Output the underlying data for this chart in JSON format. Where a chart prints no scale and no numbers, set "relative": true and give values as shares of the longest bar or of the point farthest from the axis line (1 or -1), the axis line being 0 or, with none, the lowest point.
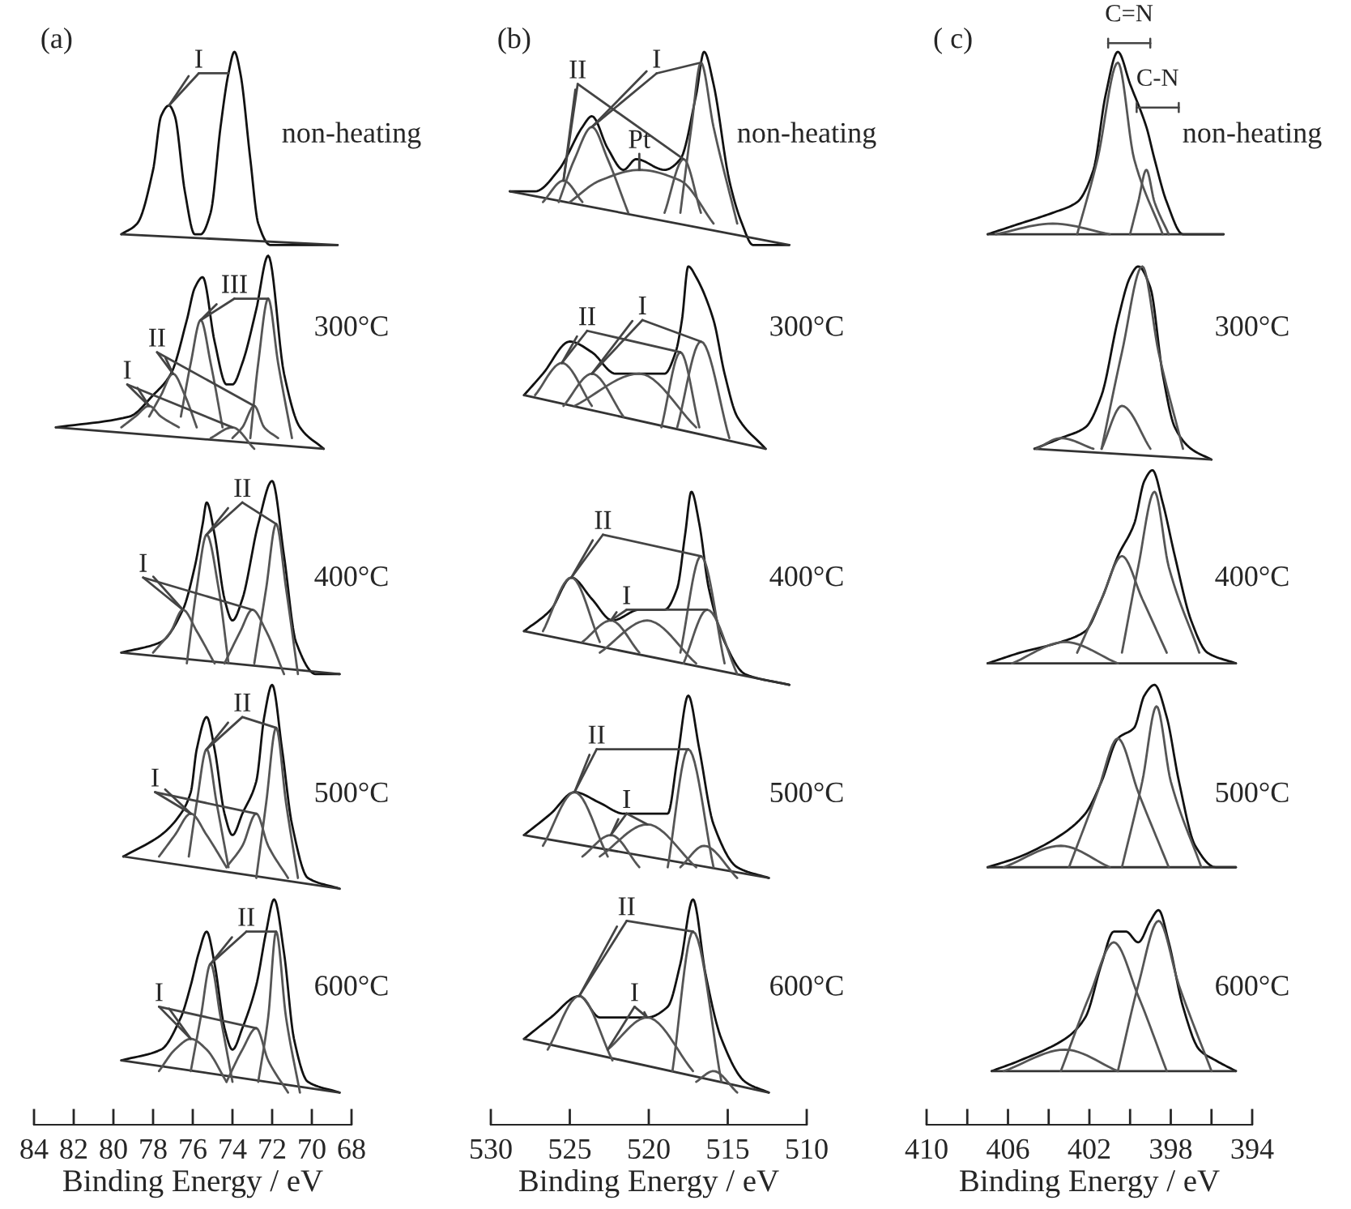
{
  "chart_data": [
    {
      "type": "line",
      "title": "(a)",
      "xlabel": "Binding Energy / eV",
      "xlim": [
        84,
        68
      ],
      "xticks": [
        84,
        82,
        80,
        78,
        76,
        74,
        72,
        70,
        68
      ],
      "tick_labels": "x",
      "relative": true,
      "series": [
        {
          "color": "#111111",
          "x": [
            79.6,
            78.8,
            78.0,
            77.6,
            77.2,
            76.9,
            76.4,
            75.9,
            75.6,
            75.1,
            74.6,
            74.2,
            73.9,
            73.6,
            73.1,
            72.7,
            72.1,
            68.7
          ],
          "values": [
            0.83,
            0.84,
            0.89,
            0.94,
            0.95,
            0.94,
            0.87,
            0.83,
            0.83,
            0.85,
            0.93,
            0.98,
            1.0,
            0.98,
            0.9,
            0.84,
            0.82,
            0.82
          ]
        },
        {
          "color": "#333333",
          "x": [
            79.6,
            68.7
          ],
          "values": [
            0.83,
            0.82
          ]
        },
        {
          "color": "#111111",
          "x": [
            82.9,
            79.2,
            78.0,
            77.1,
            76.3,
            75.9,
            75.5,
            74.9,
            74.3,
            74.0,
            73.5,
            72.8,
            72.2,
            71.4,
            70.6,
            69.4
          ],
          "values": [
            0.65,
            0.66,
            0.68,
            0.7,
            0.75,
            0.78,
            0.79,
            0.73,
            0.69,
            0.69,
            0.71,
            0.76,
            0.81,
            0.7,
            0.65,
            0.63
          ]
        },
        {
          "color": "#333333",
          "x": [
            82.9,
            69.4
          ],
          "values": [
            0.65,
            0.63
          ]
        },
        {
          "color": "#555555",
          "x": [
            76.6,
            76.1,
            75.6,
            75.1,
            74.5
          ],
          "values": [
            0.66,
            0.71,
            0.75,
            0.71,
            0.65
          ]
        },
        {
          "color": "#555555",
          "x": [
            73.1,
            72.7,
            72.2,
            71.7,
            71.0
          ],
          "values": [
            0.64,
            0.71,
            0.77,
            0.71,
            0.64
          ]
        },
        {
          "color": "#555555",
          "x": [
            78.2,
            77.6,
            77.0,
            76.4,
            75.8
          ],
          "values": [
            0.66,
            0.68,
            0.7,
            0.68,
            0.65
          ]
        },
        {
          "color": "#555555",
          "x": [
            74.0,
            73.5,
            72.9,
            72.4,
            71.7
          ],
          "values": [
            0.64,
            0.65,
            0.67,
            0.65,
            0.64
          ]
        },
        {
          "color": "#555555",
          "x": [
            79.6,
            78.9,
            78.2,
            77.6,
            76.7
          ],
          "values": [
            0.65,
            0.66,
            0.67,
            0.66,
            0.65
          ]
        },
        {
          "color": "#555555",
          "x": [
            75.1,
            74.0,
            72.9
          ],
          "values": [
            0.64,
            0.65,
            0.63
          ]
        },
        {
          "color": "#111111",
          "x": [
            79.6,
            77.6,
            76.5,
            75.9,
            75.5,
            75.3,
            74.9,
            74.4,
            74.0,
            73.5,
            72.7,
            72.0,
            71.4,
            70.8,
            69.8,
            68.6
          ],
          "values": [
            0.44,
            0.45,
            0.48,
            0.52,
            0.56,
            0.58,
            0.55,
            0.49,
            0.47,
            0.49,
            0.56,
            0.6,
            0.53,
            0.45,
            0.42,
            0.42
          ]
        },
        {
          "color": "#333333",
          "x": [
            79.6,
            68.6
          ],
          "values": [
            0.44,
            0.42
          ]
        },
        {
          "color": "#555555",
          "x": [
            76.3,
            75.8,
            75.3,
            74.7,
            74.2
          ],
          "values": [
            0.43,
            0.5,
            0.55,
            0.5,
            0.43
          ]
        },
        {
          "color": "#555555",
          "x": [
            72.9,
            72.3,
            71.8,
            71.3,
            70.7
          ],
          "values": [
            0.43,
            0.5,
            0.56,
            0.5,
            0.42
          ]
        },
        {
          "color": "#555555",
          "x": [
            78.0,
            77.1,
            76.5,
            75.8,
            74.9
          ],
          "values": [
            0.44,
            0.46,
            0.48,
            0.46,
            0.43
          ]
        },
        {
          "color": "#555555",
          "x": [
            74.4,
            73.6,
            73.0,
            72.3,
            71.4
          ],
          "values": [
            0.43,
            0.46,
            0.48,
            0.46,
            0.42
          ]
        },
        {
          "color": "#111111",
          "x": [
            79.5,
            77.6,
            76.6,
            76.1,
            75.8,
            75.3,
            74.9,
            74.4,
            74.0,
            73.5,
            72.8,
            72.4,
            72.0,
            71.5,
            71.0,
            70.2,
            68.6
          ],
          "values": [
            0.25,
            0.27,
            0.29,
            0.31,
            0.35,
            0.38,
            0.35,
            0.29,
            0.27,
            0.29,
            0.32,
            0.38,
            0.41,
            0.35,
            0.28,
            0.23,
            0.22
          ]
        },
        {
          "color": "#333333",
          "x": [
            79.5,
            68.6
          ],
          "values": [
            0.25,
            0.22
          ]
        },
        {
          "color": "#555555",
          "x": [
            76.2,
            75.8,
            75.3,
            74.8,
            74.2
          ],
          "values": [
            0.25,
            0.3,
            0.35,
            0.3,
            0.24
          ]
        },
        {
          "color": "#555555",
          "x": [
            72.8,
            72.3,
            71.8,
            71.3,
            70.7
          ],
          "values": [
            0.23,
            0.3,
            0.37,
            0.3,
            0.23
          ]
        },
        {
          "color": "#555555",
          "x": [
            77.7,
            76.9,
            76.1,
            75.3,
            74.3
          ],
          "values": [
            0.25,
            0.27,
            0.29,
            0.27,
            0.24
          ]
        },
        {
          "color": "#555555",
          "x": [
            74.3,
            73.5,
            72.8,
            72.2,
            71.2
          ],
          "values": [
            0.24,
            0.26,
            0.29,
            0.26,
            0.23
          ]
        },
        {
          "color": "#111111",
          "x": [
            79.6,
            77.6,
            76.6,
            76.1,
            75.7,
            75.3,
            74.9,
            74.4,
            74.0,
            73.5,
            72.8,
            72.3,
            71.9,
            71.4,
            70.9,
            70.2,
            68.6
          ],
          "values": [
            0.06,
            0.07,
            0.1,
            0.13,
            0.16,
            0.18,
            0.15,
            0.09,
            0.07,
            0.09,
            0.13,
            0.18,
            0.21,
            0.16,
            0.08,
            0.04,
            0.03
          ]
        },
        {
          "color": "#333333",
          "x": [
            79.6,
            68.6
          ],
          "values": [
            0.06,
            0.03
          ]
        },
        {
          "color": "#555555",
          "x": [
            76.1,
            75.6,
            75.1,
            74.6,
            74.0
          ],
          "values": [
            0.05,
            0.1,
            0.15,
            0.1,
            0.04
          ]
        },
        {
          "color": "#555555",
          "x": [
            72.7,
            72.2,
            71.8,
            71.3,
            70.6
          ],
          "values": [
            0.04,
            0.1,
            0.18,
            0.1,
            0.03
          ]
        },
        {
          "color": "#555555",
          "x": [
            77.7,
            76.9,
            76.1,
            75.3,
            74.3
          ],
          "values": [
            0.05,
            0.07,
            0.08,
            0.07,
            0.04
          ]
        },
        {
          "color": "#555555",
          "x": [
            74.3,
            73.5,
            72.8,
            72.2,
            71.2
          ],
          "values": [
            0.04,
            0.07,
            0.09,
            0.06,
            0.03
          ]
        },
        {
          "color": "#444444",
          "x": [
            75.7,
            77.2
          ],
          "values": [
            0.98,
            0.95
          ]
        },
        {
          "color": "#444444",
          "x": [
            75.7,
            74.2
          ],
          "values": [
            0.98,
            0.98
          ]
        },
        {
          "color": "#444444",
          "x": [
            73.9,
            75.6
          ],
          "values": [
            0.77,
            0.75
          ]
        },
        {
          "color": "#444444",
          "x": [
            73.9,
            72.2
          ],
          "values": [
            0.77,
            0.77
          ]
        },
        {
          "color": "#444444",
          "x": [
            77.8,
            77.0
          ],
          "values": [
            0.72,
            0.7
          ]
        },
        {
          "color": "#444444",
          "x": [
            77.8,
            72.9
          ],
          "values": [
            0.72,
            0.67
          ]
        },
        {
          "color": "#444444",
          "x": [
            79.3,
            78.2
          ],
          "values": [
            0.69,
            0.67
          ]
        },
        {
          "color": "#444444",
          "x": [
            79.3,
            74.0
          ],
          "values": [
            0.69,
            0.65
          ]
        },
        {
          "color": "#444444",
          "x": [
            73.5,
            75.3
          ],
          "values": [
            0.58,
            0.55
          ]
        },
        {
          "color": "#444444",
          "x": [
            73.5,
            71.8
          ],
          "values": [
            0.58,
            0.56
          ]
        },
        {
          "color": "#444444",
          "x": [
            78.5,
            76.5
          ],
          "values": [
            0.51,
            0.48
          ]
        },
        {
          "color": "#444444",
          "x": [
            78.5,
            73.0
          ],
          "values": [
            0.51,
            0.48
          ]
        },
        {
          "color": "#444444",
          "x": [
            73.5,
            75.3
          ],
          "values": [
            0.38,
            0.35
          ]
        },
        {
          "color": "#444444",
          "x": [
            73.5,
            71.8
          ],
          "values": [
            0.38,
            0.37
          ]
        },
        {
          "color": "#444444",
          "x": [
            77.9,
            76.1
          ],
          "values": [
            0.31,
            0.29
          ]
        },
        {
          "color": "#444444",
          "x": [
            77.9,
            72.8
          ],
          "values": [
            0.31,
            0.29
          ]
        },
        {
          "color": "#444444",
          "x": [
            73.3,
            75.1
          ],
          "values": [
            0.18,
            0.15
          ]
        },
        {
          "color": "#444444",
          "x": [
            73.3,
            71.8
          ],
          "values": [
            0.18,
            0.18
          ]
        },
        {
          "color": "#444444",
          "x": [
            77.7,
            76.1
          ],
          "values": [
            0.11,
            0.08
          ]
        },
        {
          "color": "#444444",
          "x": [
            77.7,
            72.8
          ],
          "values": [
            0.11,
            0.09
          ]
        }
      ],
      "annotations": [
        {
          "text": "I",
          "x": 77.2,
          "y": 0.95
        },
        {
          "text": "III",
          "x": 75.6,
          "y": 0.75
        },
        {
          "text": "II",
          "x": 77.0,
          "y": 0.7
        },
        {
          "text": "I",
          "x": 78.2,
          "y": 0.67
        },
        {
          "text": "II",
          "x": 75.3,
          "y": 0.55
        },
        {
          "text": "I",
          "x": 76.5,
          "y": 0.48
        },
        {
          "text": "II",
          "x": 75.3,
          "y": 0.35
        },
        {
          "text": "I",
          "x": 76.1,
          "y": 0.29
        },
        {
          "text": "II",
          "x": 75.1,
          "y": 0.15
        },
        {
          "text": "I",
          "x": 76.1,
          "y": 0.08
        },
        "non-heating",
        "300°C",
        "400°C",
        "500°C",
        "600°C"
      ]
    },
    {
      "type": "line",
      "title": "(b)",
      "xlabel": "Binding Energy / eV",
      "xlim": [
        530,
        510
      ],
      "xticks": [
        530,
        525,
        520,
        515,
        510
      ],
      "tick_labels": "x",
      "relative": true,
      "series": [
        {
          "color": "#111111",
          "x": [
            528.8,
            527.2,
            525.7,
            524.2,
            523.6,
            522.6,
            521.6,
            520.8,
            519.0,
            518.0,
            517.0,
            516.5,
            515.9,
            514.9,
            514.1,
            513.4,
            511.1
          ],
          "values": [
            0.87,
            0.87,
            0.89,
            0.93,
            0.94,
            0.91,
            0.89,
            0.9,
            0.89,
            0.9,
            0.96,
            1.0,
            0.97,
            0.88,
            0.84,
            0.82,
            0.82
          ]
        },
        {
          "color": "#333333",
          "x": [
            528.8,
            511.1
          ],
          "values": [
            0.87,
            0.82
          ]
        },
        {
          "color": "#555555",
          "x": [
            526.7,
            525.4,
            524.2
          ],
          "values": [
            0.86,
            0.88,
            0.86
          ]
        },
        {
          "color": "#555555",
          "x": [
            525.7,
            524.7,
            523.6,
            522.6,
            521.3
          ],
          "values": [
            0.86,
            0.9,
            0.93,
            0.9,
            0.85
          ]
        },
        {
          "color": "#555555",
          "x": [
            525.0,
            523.1,
            520.6,
            518.0,
            515.9
          ],
          "values": [
            0.86,
            0.88,
            0.89,
            0.88,
            0.84
          ]
        },
        {
          "color": "#555555",
          "x": [
            519.0,
            517.8,
            516.7
          ],
          "values": [
            0.85,
            0.9,
            0.85
          ]
        },
        {
          "color": "#555555",
          "x": [
            518.0,
            517.3,
            516.7,
            515.9,
            514.4
          ],
          "values": [
            0.85,
            0.93,
            0.99,
            0.93,
            0.84
          ]
        },
        {
          "color": "#111111",
          "x": [
            527.9,
            526.7,
            525.0,
            523.6,
            522.1,
            520.6,
            519.0,
            518.3,
            517.9,
            517.5,
            517.0,
            515.9,
            515.2,
            514.4,
            512.6
          ],
          "values": [
            0.68,
            0.7,
            0.73,
            0.72,
            0.7,
            0.7,
            0.7,
            0.72,
            0.75,
            0.8,
            0.79,
            0.75,
            0.7,
            0.66,
            0.63
          ]
        },
        {
          "color": "#333333",
          "x": [
            527.9,
            512.6
          ],
          "values": [
            0.68,
            0.63
          ]
        },
        {
          "color": "#555555",
          "x": [
            527.2,
            525.5,
            523.6
          ],
          "values": [
            0.68,
            0.71,
            0.67
          ]
        },
        {
          "color": "#555555",
          "x": [
            525.4,
            523.6,
            521.6
          ],
          "values": [
            0.67,
            0.7,
            0.66
          ]
        },
        {
          "color": "#555555",
          "x": [
            524.7,
            520.6,
            517.0
          ],
          "values": [
            0.67,
            0.7,
            0.65
          ]
        },
        {
          "color": "#555555",
          "x": [
            519.2,
            518.0,
            516.8
          ],
          "values": [
            0.65,
            0.72,
            0.65
          ]
        },
        {
          "color": "#555555",
          "x": [
            518.2,
            516.7,
            514.9
          ],
          "values": [
            0.65,
            0.73,
            0.64
          ]
        },
        {
          "color": "#111111",
          "x": [
            527.9,
            526.2,
            524.9,
            523.6,
            522.3,
            520.6,
            519.0,
            518.2,
            517.7,
            517.3,
            516.8,
            516.2,
            515.2,
            513.9,
            511.1
          ],
          "values": [
            0.46,
            0.48,
            0.51,
            0.49,
            0.47,
            0.48,
            0.48,
            0.5,
            0.55,
            0.59,
            0.56,
            0.5,
            0.45,
            0.42,
            0.41
          ]
        },
        {
          "color": "#333333",
          "x": [
            527.9,
            511.1
          ],
          "values": [
            0.46,
            0.41
          ]
        },
        {
          "color": "#555555",
          "x": [
            526.7,
            524.9,
            523.1
          ],
          "values": [
            0.46,
            0.51,
            0.45
          ]
        },
        {
          "color": "#555555",
          "x": [
            524.2,
            522.4,
            520.6
          ],
          "values": [
            0.45,
            0.47,
            0.44
          ]
        },
        {
          "color": "#555555",
          "x": [
            523.1,
            520.1,
            517.0
          ],
          "values": [
            0.44,
            0.47,
            0.43
          ]
        },
        {
          "color": "#555555",
          "x": [
            518.0,
            516.7,
            515.2
          ],
          "values": [
            0.44,
            0.53,
            0.43
          ]
        },
        {
          "color": "#555555",
          "x": [
            517.8,
            516.3,
            514.4
          ],
          "values": [
            0.43,
            0.48,
            0.42
          ]
        },
        {
          "color": "#111111",
          "x": [
            527.9,
            526.2,
            524.7,
            523.1,
            521.6,
            520.1,
            518.8,
            518.2,
            517.5,
            516.8,
            515.9,
            514.4,
            512.4
          ],
          "values": [
            0.27,
            0.29,
            0.31,
            0.3,
            0.29,
            0.29,
            0.29,
            0.34,
            0.4,
            0.35,
            0.28,
            0.24,
            0.23
          ]
        },
        {
          "color": "#333333",
          "x": [
            527.9,
            512.4
          ],
          "values": [
            0.27,
            0.23
          ]
        },
        {
          "color": "#555555",
          "x": [
            526.7,
            524.7,
            522.6
          ],
          "values": [
            0.26,
            0.31,
            0.25
          ]
        },
        {
          "color": "#555555",
          "x": [
            524.2,
            522.4,
            520.6
          ],
          "values": [
            0.25,
            0.27,
            0.24
          ]
        },
        {
          "color": "#555555",
          "x": [
            523.1,
            520.1,
            517.0
          ],
          "values": [
            0.25,
            0.28,
            0.24
          ]
        },
        {
          "color": "#555555",
          "x": [
            518.8,
            517.5,
            515.9
          ],
          "values": [
            0.24,
            0.35,
            0.24
          ]
        },
        {
          "color": "#555555",
          "x": [
            518.0,
            516.5,
            514.4
          ],
          "values": [
            0.24,
            0.26,
            0.23
          ]
        },
        {
          "color": "#111111",
          "x": [
            527.9,
            526.2,
            524.4,
            523.1,
            521.6,
            520.1,
            518.8,
            518.0,
            517.2,
            516.4,
            515.4,
            513.9,
            512.4
          ],
          "values": [
            0.08,
            0.1,
            0.12,
            0.1,
            0.1,
            0.1,
            0.11,
            0.15,
            0.21,
            0.14,
            0.08,
            0.04,
            0.03
          ]
        },
        {
          "color": "#333333",
          "x": [
            527.9,
            512.4
          ],
          "values": [
            0.08,
            0.03
          ]
        },
        {
          "color": "#555555",
          "x": [
            526.4,
            524.4,
            522.3
          ],
          "values": [
            0.07,
            0.12,
            0.06
          ]
        },
        {
          "color": "#555555",
          "x": [
            522.6,
            520.1,
            517.2
          ],
          "values": [
            0.07,
            0.1,
            0.05
          ]
        },
        {
          "color": "#555555",
          "x": [
            518.5,
            517.2,
            515.4
          ],
          "values": [
            0.05,
            0.18,
            0.04
          ]
        },
        {
          "color": "#555555",
          "x": [
            517.0,
            515.9,
            514.4
          ],
          "values": [
            0.04,
            0.05,
            0.03
          ]
        },
        {
          "color": "#444444",
          "x": [
            524.5,
            525.4
          ],
          "values": [
            0.97,
            0.88
          ]
        },
        {
          "color": "#444444",
          "x": [
            524.5,
            517.8
          ],
          "values": [
            0.97,
            0.9
          ]
        },
        {
          "color": "#444444",
          "x": [
            519.5,
            523.6
          ],
          "values": [
            0.98,
            0.93
          ]
        },
        {
          "color": "#444444",
          "x": [
            519.5,
            516.7
          ],
          "values": [
            0.98,
            0.99
          ]
        },
        {
          "color": "#444444",
          "x": [
            520.6,
            520.6
          ],
          "values": [
            0.905,
            0.89
          ]
        },
        {
          "color": "#444444",
          "x": [
            523.9,
            525.5
          ],
          "values": [
            0.74,
            0.71
          ]
        },
        {
          "color": "#444444",
          "x": [
            523.9,
            518.0
          ],
          "values": [
            0.74,
            0.72
          ]
        },
        {
          "color": "#444444",
          "x": [
            520.4,
            523.6
          ],
          "values": [
            0.75,
            0.7
          ]
        },
        {
          "color": "#444444",
          "x": [
            520.4,
            516.7
          ],
          "values": [
            0.75,
            0.73
          ]
        },
        {
          "color": "#444444",
          "x": [
            522.9,
            524.9
          ],
          "values": [
            0.55,
            0.51
          ]
        },
        {
          "color": "#444444",
          "x": [
            522.9,
            516.7
          ],
          "values": [
            0.55,
            0.53
          ]
        },
        {
          "color": "#444444",
          "x": [
            521.4,
            522.4
          ],
          "values": [
            0.48,
            0.47
          ]
        },
        {
          "color": "#444444",
          "x": [
            521.4,
            516.3
          ],
          "values": [
            0.48,
            0.48
          ]
        },
        {
          "color": "#444444",
          "x": [
            523.3,
            524.7
          ],
          "values": [
            0.35,
            0.31
          ]
        },
        {
          "color": "#444444",
          "x": [
            523.3,
            517.5
          ],
          "values": [
            0.35,
            0.35
          ]
        },
        {
          "color": "#444444",
          "x": [
            521.4,
            522.4
          ],
          "values": [
            0.29,
            0.27
          ]
        },
        {
          "color": "#444444",
          "x": [
            521.4,
            520.1
          ],
          "values": [
            0.29,
            0.28
          ]
        },
        {
          "color": "#444444",
          "x": [
            521.4,
            524.4
          ],
          "values": [
            0.19,
            0.12
          ]
        },
        {
          "color": "#444444",
          "x": [
            521.4,
            517.2
          ],
          "values": [
            0.19,
            0.18
          ]
        },
        {
          "color": "#444444",
          "x": [
            520.9,
            522.6
          ],
          "values": [
            0.11,
            0.07
          ]
        },
        {
          "color": "#444444",
          "x": [
            520.9,
            520.1
          ],
          "values": [
            0.11,
            0.1
          ]
        }
      ],
      "annotations": [
        {
          "text": "II",
          "x": 525.4,
          "y": 0.88
        },
        {
          "text": "I",
          "x": 523.6,
          "y": 0.93
        },
        {
          "text": "Pt",
          "x": 520.6,
          "y": 0.89
        },
        {
          "text": "II",
          "x": 525.5,
          "y": 0.71
        },
        {
          "text": "I",
          "x": 523.6,
          "y": 0.7
        },
        {
          "text": "II",
          "x": 524.9,
          "y": 0.51
        },
        {
          "text": "I",
          "x": 522.4,
          "y": 0.47
        },
        {
          "text": "II",
          "x": 524.7,
          "y": 0.31
        },
        {
          "text": "I",
          "x": 522.4,
          "y": 0.27
        },
        {
          "text": "II",
          "x": 524.4,
          "y": 0.12
        },
        {
          "text": "I",
          "x": 520.1,
          "y": 0.1
        },
        "non-heating",
        "300°C",
        "400°C",
        "500°C",
        "600°C"
      ]
    },
    {
      "type": "line",
      "title": "( c)",
      "xlabel": "Binding Energy / eV",
      "xlim": [
        410,
        394
      ],
      "xticks": [
        410,
        {
          "value": 408,
          "label": null
        },
        406,
        {
          "value": 404,
          "label": null
        },
        402,
        {
          "value": 400,
          "label": null
        },
        398,
        {
          "value": 396,
          "label": null
        },
        394
      ],
      "tick_labels": "x",
      "relative": true,
      "series": [
        {
          "color": "#111111",
          "x": [
            407.0,
            405.4,
            403.8,
            402.6,
            401.8,
            401.2,
            400.6,
            400.0,
            399.2,
            398.8,
            398.2,
            397.4,
            395.4
          ],
          "values": [
            0.83,
            0.84,
            0.85,
            0.86,
            0.89,
            0.96,
            1.0,
            0.97,
            0.93,
            0.9,
            0.86,
            0.83,
            0.83
          ]
        },
        {
          "color": "#333333",
          "x": [
            407.0,
            395.4
          ],
          "values": [
            0.83,
            0.83
          ]
        },
        {
          "color": "#555555",
          "x": [
            406.6,
            403.8,
            401.0
          ],
          "values": [
            0.83,
            0.84,
            0.83
          ]
        },
        {
          "color": "#555555",
          "x": [
            402.6,
            401.6,
            400.6,
            399.8,
            398.4
          ],
          "values": [
            0.83,
            0.9,
            0.99,
            0.9,
            0.83
          ]
        },
        {
          "color": "#555555",
          "x": [
            400.0,
            399.6,
            399.2,
            398.8,
            398.1
          ],
          "values": [
            0.83,
            0.86,
            0.89,
            0.86,
            0.83
          ]
        },
        {
          "color": "#111111",
          "x": [
            404.7,
            403.4,
            402.2,
            401.4,
            400.6,
            400.0,
            399.6,
            399.0,
            398.4,
            397.8,
            397.0,
            396.0
          ],
          "values": [
            0.63,
            0.64,
            0.65,
            0.68,
            0.75,
            0.79,
            0.8,
            0.78,
            0.7,
            0.65,
            0.63,
            0.62
          ]
        },
        {
          "color": "#333333",
          "x": [
            404.7,
            396.0
          ],
          "values": [
            0.63,
            0.62
          ]
        },
        {
          "color": "#555555",
          "x": [
            401.4,
            400.4,
            399.4,
            398.6,
            397.4
          ],
          "values": [
            0.63,
            0.72,
            0.8,
            0.72,
            0.63
          ]
        },
        {
          "color": "#555555",
          "x": [
            401.4,
            400.4,
            399.0
          ],
          "values": [
            0.63,
            0.67,
            0.63
          ]
        },
        {
          "color": "#555555",
          "x": [
            404.6,
            403.4,
            401.8
          ],
          "values": [
            0.63,
            0.64,
            0.63
          ]
        },
        {
          "color": "#111111",
          "x": [
            407.0,
            405.4,
            403.4,
            402.2,
            401.4,
            400.6,
            399.8,
            399.3,
            398.9,
            398.4,
            397.8,
            397.0,
            396.2,
            394.8
          ],
          "values": [
            0.43,
            0.44,
            0.45,
            0.46,
            0.49,
            0.53,
            0.56,
            0.6,
            0.61,
            0.58,
            0.53,
            0.47,
            0.44,
            0.43
          ]
        },
        {
          "color": "#333333",
          "x": [
            407.0,
            394.8
          ],
          "values": [
            0.43,
            0.43
          ]
        },
        {
          "color": "#555555",
          "x": [
            402.6,
            401.4,
            400.4,
            399.4,
            398.2
          ],
          "values": [
            0.44,
            0.49,
            0.53,
            0.49,
            0.44
          ]
        },
        {
          "color": "#555555",
          "x": [
            400.4,
            399.6,
            398.8,
            398.1,
            396.6
          ],
          "values": [
            0.44,
            0.52,
            0.59,
            0.52,
            0.44
          ]
        },
        {
          "color": "#555555",
          "x": [
            405.8,
            403.2,
            400.6
          ],
          "values": [
            0.43,
            0.45,
            0.43
          ]
        },
        {
          "color": "#111111",
          "x": [
            407.0,
            405.4,
            403.4,
            402.2,
            401.4,
            400.6,
            399.8,
            399.3,
            398.8,
            398.2,
            397.6,
            396.8,
            395.8,
            394.8
          ],
          "values": [
            0.24,
            0.25,
            0.27,
            0.29,
            0.32,
            0.36,
            0.37,
            0.4,
            0.41,
            0.38,
            0.32,
            0.26,
            0.24,
            0.24
          ]
        },
        {
          "color": "#333333",
          "x": [
            407.0,
            394.8
          ],
          "values": [
            0.24,
            0.24
          ]
        },
        {
          "color": "#555555",
          "x": [
            403.0,
            401.6,
            400.6,
            399.6,
            398.1
          ],
          "values": [
            0.24,
            0.31,
            0.36,
            0.31,
            0.24
          ]
        },
        {
          "color": "#555555",
          "x": [
            400.4,
            399.4,
            398.7,
            398.0,
            396.5
          ],
          "values": [
            0.24,
            0.32,
            0.39,
            0.32,
            0.24
          ]
        },
        {
          "color": "#555555",
          "x": [
            406.2,
            403.4,
            401.0
          ],
          "values": [
            0.24,
            0.26,
            0.24
          ]
        },
        {
          "color": "#111111",
          "x": [
            406.8,
            405.4,
            403.2,
            402.2,
            401.4,
            400.8,
            400.2,
            399.6,
            399.0,
            398.6,
            398.1,
            397.4,
            396.6,
            395.8,
            394.8
          ],
          "values": [
            0.05,
            0.06,
            0.08,
            0.1,
            0.15,
            0.18,
            0.18,
            0.17,
            0.19,
            0.2,
            0.17,
            0.11,
            0.07,
            0.06,
            0.05
          ]
        },
        {
          "color": "#333333",
          "x": [
            406.8,
            394.8
          ],
          "values": [
            0.05,
            0.05
          ]
        },
        {
          "color": "#555555",
          "x": [
            403.4,
            402.0,
            400.8,
            399.6,
            398.2
          ],
          "values": [
            0.05,
            0.12,
            0.17,
            0.12,
            0.05
          ]
        },
        {
          "color": "#555555",
          "x": [
            400.6,
            399.6,
            398.6,
            397.6,
            396.0
          ],
          "values": [
            0.05,
            0.13,
            0.19,
            0.13,
            0.05
          ]
        },
        {
          "color": "#555555",
          "x": [
            406.2,
            403.2,
            400.6
          ],
          "values": [
            0.05,
            0.07,
            0.05
          ]
        }
      ],
      "annotations": [
        {
          "text": "C=N",
          "x": 400.6,
          "y": 0.99
        },
        {
          "text": "C-N",
          "x": 399.2,
          "y": 0.93
        },
        "non-heating",
        "300°C",
        "400°C",
        "500°C",
        "600°C"
      ]
    }
  ]
}
